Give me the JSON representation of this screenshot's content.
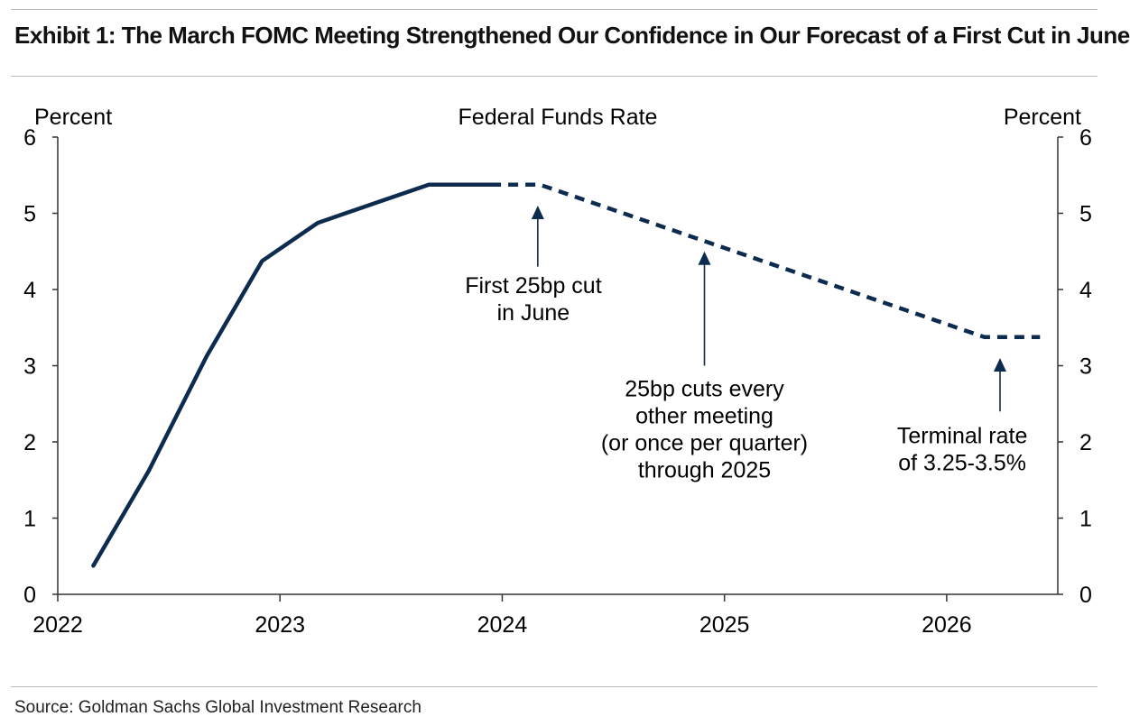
{
  "header": {
    "exhibit_title": "Exhibit 1: The March FOMC Meeting Strengthened Our Confidence in Our Forecast of a First Cut in June"
  },
  "footer": {
    "source": "Source: Goldman Sachs Global Investment Research"
  },
  "colors": {
    "series": "#0d2b4e",
    "axis": "#333333",
    "rule": "#bdbdbd"
  },
  "chart_data": {
    "type": "line",
    "title": "Federal Funds Rate",
    "ylabel_left": "Percent",
    "ylabel_right": "Percent",
    "xlabel": "",
    "ylim": [
      0,
      6
    ],
    "yticks": [
      0,
      1,
      2,
      3,
      4,
      5,
      6
    ],
    "xlim": [
      2022.0,
      2026.5
    ],
    "xticks": [
      {
        "value": 2022,
        "label": "2022"
      },
      {
        "value": 2023,
        "label": "2023"
      },
      {
        "value": 2024,
        "label": "2024"
      },
      {
        "value": 2025,
        "label": "2025"
      },
      {
        "value": 2026,
        "label": "2026"
      }
    ],
    "grid": false,
    "series": [
      {
        "style": "solid",
        "points": [
          {
            "x": 2022.16,
            "y": 0.375
          },
          {
            "x": 2022.41,
            "y": 1.625
          },
          {
            "x": 2022.67,
            "y": 3.125
          },
          {
            "x": 2022.92,
            "y": 4.375
          },
          {
            "x": 2023.17,
            "y": 4.875
          },
          {
            "x": 2023.42,
            "y": 5.125
          },
          {
            "x": 2023.67,
            "y": 5.375
          },
          {
            "x": 2023.95,
            "y": 5.375
          }
        ]
      },
      {
        "style": "dashed",
        "points": [
          {
            "x": 2023.95,
            "y": 5.375
          },
          {
            "x": 2024.17,
            "y": 5.375
          },
          {
            "x": 2026.17,
            "y": 3.375
          },
          {
            "x": 2026.42,
            "y": 3.375
          }
        ]
      }
    ],
    "annotations": [
      {
        "lines": [
          "First 25bp cut",
          "in June"
        ],
        "arrow_x": 2024.16,
        "arrow_tip_y": 5.1,
        "arrow_base_y": 4.3,
        "text_x": 2024.14,
        "text_y": 3.95
      },
      {
        "lines": [
          "25bp cuts every",
          "other meeting",
          "(or once per quarter)",
          "through 2025"
        ],
        "arrow_x": 2024.91,
        "arrow_tip_y": 4.5,
        "arrow_base_y": 3.0,
        "text_x": 2024.91,
        "text_y": 2.6
      },
      {
        "lines": [
          "Terminal rate",
          "of 3.25-3.5%"
        ],
        "arrow_x": 2026.24,
        "arrow_tip_y": 3.1,
        "arrow_base_y": 2.4,
        "text_x": 2026.07,
        "text_y": 1.98
      }
    ]
  }
}
